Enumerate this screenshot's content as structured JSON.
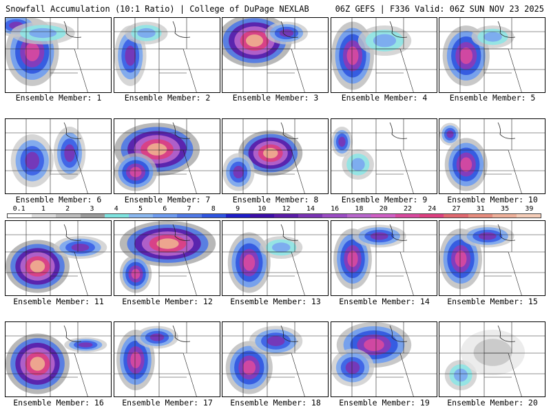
{
  "header": {
    "title_left": "Snowfall Accumulation (10:1 Ratio) | College of DuPage NEXLAB",
    "title_right": "06Z GEFS | F336 Valid: 06Z SUN NOV 23 2025"
  },
  "panels": [
    {
      "label": "Ensemble Member: 1",
      "member": 1,
      "blobs": [
        [
          0.25,
          0.45,
          0.25,
          0.45,
          3
        ],
        [
          0.1,
          0.1,
          0.2,
          0.15,
          2
        ],
        [
          0.35,
          0.2,
          0.3,
          0.15,
          1
        ]
      ]
    },
    {
      "label": "Ensemble Member: 2",
      "member": 2,
      "blobs": [
        [
          0.15,
          0.5,
          0.15,
          0.4,
          2
        ],
        [
          0.3,
          0.2,
          0.2,
          0.15,
          1
        ]
      ]
    },
    {
      "label": "Ensemble Member: 3",
      "member": 3,
      "blobs": [
        [
          0.3,
          0.3,
          0.35,
          0.35,
          4
        ],
        [
          0.6,
          0.2,
          0.2,
          0.15,
          2
        ]
      ]
    },
    {
      "label": "Ensemble Member: 4",
      "member": 4,
      "blobs": [
        [
          0.2,
          0.5,
          0.2,
          0.45,
          3
        ],
        [
          0.5,
          0.3,
          0.25,
          0.2,
          1
        ]
      ]
    },
    {
      "label": "Ensemble Member: 5",
      "member": 5,
      "blobs": [
        [
          0.25,
          0.5,
          0.22,
          0.4,
          3
        ],
        [
          0.5,
          0.25,
          0.2,
          0.15,
          1
        ]
      ]
    },
    {
      "label": "Ensemble Member: 6",
      "member": 6,
      "blobs": [
        [
          0.25,
          0.55,
          0.2,
          0.35,
          2
        ],
        [
          0.6,
          0.45,
          0.15,
          0.35,
          2
        ]
      ]
    },
    {
      "label": "Ensemble Member: 7",
      "member": 7,
      "blobs": [
        [
          0.4,
          0.4,
          0.4,
          0.35,
          4
        ],
        [
          0.2,
          0.7,
          0.2,
          0.25,
          3
        ]
      ]
    },
    {
      "label": "Ensemble Member: 8",
      "member": 8,
      "blobs": [
        [
          0.45,
          0.45,
          0.3,
          0.3,
          4
        ],
        [
          0.15,
          0.7,
          0.15,
          0.25,
          2
        ]
      ]
    },
    {
      "label": "Ensemble Member: 9",
      "member": 9,
      "blobs": [
        [
          0.1,
          0.3,
          0.1,
          0.2,
          2
        ],
        [
          0.25,
          0.6,
          0.15,
          0.2,
          1
        ]
      ]
    },
    {
      "label": "Ensemble Member: 10",
      "member": 10,
      "blobs": [
        [
          0.25,
          0.6,
          0.2,
          0.35,
          3
        ],
        [
          0.1,
          0.2,
          0.1,
          0.15,
          2
        ]
      ]
    },
    {
      "label": "Ensemble Member: 11",
      "member": 11,
      "blobs": [
        [
          0.3,
          0.6,
          0.3,
          0.35,
          4
        ],
        [
          0.7,
          0.35,
          0.25,
          0.15,
          2
        ]
      ]
    },
    {
      "label": "Ensemble Member: 12",
      "member": 12,
      "blobs": [
        [
          0.5,
          0.3,
          0.45,
          0.3,
          4
        ],
        [
          0.2,
          0.7,
          0.15,
          0.25,
          3
        ]
      ]
    },
    {
      "label": "Ensemble Member: 13",
      "member": 13,
      "blobs": [
        [
          0.25,
          0.55,
          0.2,
          0.4,
          3
        ],
        [
          0.55,
          0.35,
          0.2,
          0.15,
          1
        ]
      ]
    },
    {
      "label": "Ensemble Member: 14",
      "member": 14,
      "blobs": [
        [
          0.2,
          0.5,
          0.18,
          0.4,
          3
        ],
        [
          0.45,
          0.2,
          0.25,
          0.15,
          2
        ]
      ]
    },
    {
      "label": "Ensemble Member: 15",
      "member": 15,
      "blobs": [
        [
          0.2,
          0.5,
          0.2,
          0.4,
          3
        ],
        [
          0.45,
          0.2,
          0.25,
          0.15,
          2
        ]
      ]
    },
    {
      "label": "Ensemble Member: 16",
      "member": 16,
      "blobs": [
        [
          0.3,
          0.55,
          0.3,
          0.4,
          4
        ],
        [
          0.75,
          0.3,
          0.2,
          0.1,
          2
        ]
      ]
    },
    {
      "label": "Ensemble Member: 17",
      "member": 17,
      "blobs": [
        [
          0.2,
          0.5,
          0.18,
          0.4,
          3
        ],
        [
          0.4,
          0.2,
          0.2,
          0.15,
          2
        ]
      ]
    },
    {
      "label": "Ensemble Member: 18",
      "member": 18,
      "blobs": [
        [
          0.25,
          0.6,
          0.22,
          0.35,
          3
        ],
        [
          0.5,
          0.25,
          0.25,
          0.2,
          2
        ]
      ]
    },
    {
      "label": "Ensemble Member: 19",
      "member": 19,
      "blobs": [
        [
          0.4,
          0.3,
          0.35,
          0.3,
          3
        ],
        [
          0.2,
          0.6,
          0.2,
          0.25,
          2
        ]
      ]
    },
    {
      "label": "Ensemble Member: 20",
      "member": 20,
      "blobs": [
        [
          0.2,
          0.7,
          0.15,
          0.2,
          1
        ],
        [
          0.5,
          0.4,
          0.3,
          0.3,
          0
        ]
      ]
    }
  ],
  "legend": {
    "labels": [
      "0.1",
      "1",
      "2",
      "3",
      "4",
      "5",
      "6",
      "7",
      "8",
      "9",
      "10",
      "12",
      "14",
      "16",
      "18",
      "20",
      "22",
      "24",
      "27",
      "31",
      "35",
      "39"
    ],
    "colors": [
      "#ffffff",
      "#dcdcdc",
      "#bdbdbd",
      "#9a9a9a",
      "#7fe3e0",
      "#8ab8f0",
      "#6e9cf0",
      "#4f79e6",
      "#2f55e0",
      "#1d1dc8",
      "#3c0ea8",
      "#5a1ca8",
      "#7a34b4",
      "#9b4cc4",
      "#b866cc",
      "#cf5fc4",
      "#d8499e",
      "#dd3f80",
      "#e06870",
      "#e68c7e",
      "#eeb09a",
      "#f5cdb8"
    ]
  }
}
